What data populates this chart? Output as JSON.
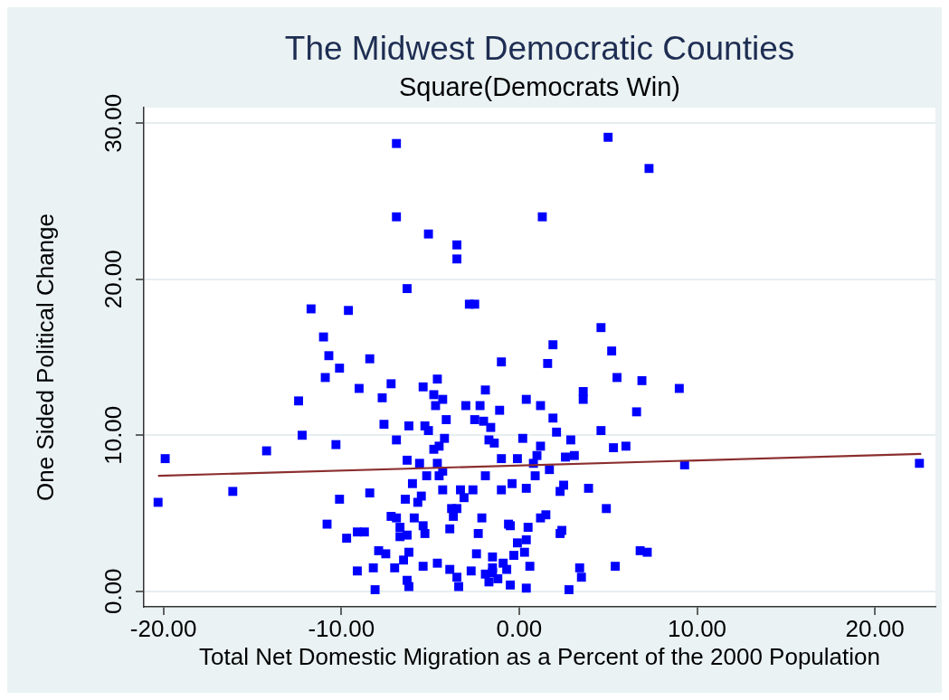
{
  "chart_data": {
    "type": "scatter",
    "title": "The Midwest Democratic Counties",
    "subtitle": "Square(Democrats Win)",
    "xlabel": "Total Net Domestic Migration as a Percent of the 2000 Population",
    "ylabel": "One Sided Political Change",
    "xlim": [
      -21.1,
      23.4
    ],
    "ylim": [
      -1,
      31
    ],
    "xticks": [
      {
        "value": -20,
        "label": "-20.00"
      },
      {
        "value": -10,
        "label": "-10.00"
      },
      {
        "value": 0,
        "label": "0.00"
      },
      {
        "value": 10,
        "label": "10.00"
      },
      {
        "value": 20,
        "label": "20.00"
      }
    ],
    "yticks": [
      {
        "value": 0,
        "label": "0.00"
      },
      {
        "value": 10,
        "label": "10.00"
      },
      {
        "value": 20,
        "label": "20.00"
      },
      {
        "value": 30,
        "label": "30.00"
      }
    ],
    "grid": "y",
    "marker": "square",
    "series": [
      {
        "color": "#0000ff",
        "x": [
          -11.7,
          -9.6,
          -11.0,
          -10.7,
          -8.4,
          -10.1,
          -10.9,
          -9.0,
          -7.2,
          -12.4,
          -7.7,
          -7.6,
          -12.2,
          -10.3,
          -14.2,
          -19.9,
          -16.1,
          -20.3,
          -8.4,
          -10.1,
          -7.2,
          -10.8,
          -9.7,
          -9.1,
          -8.7,
          -7.9,
          -7.5,
          -9.1,
          -8.2,
          -8.1,
          -6.9,
          5.0,
          -6.9,
          1.3,
          -5.1,
          -3.5,
          -3.5,
          -6.3,
          -2.8,
          -2.5,
          4.6,
          1.9,
          5.2,
          -1.0,
          1.6,
          5.5,
          6.9,
          -4.6,
          -5.4,
          -1.9,
          3.6,
          3.6,
          -4.8,
          -4.3,
          -4.7,
          0.4,
          -3.0,
          -2.2,
          1.2,
          -1.1,
          6.6,
          1.9,
          -4.1,
          -2.5,
          -2.0,
          -1.6,
          -6.2,
          -5.3,
          -5.1,
          2.1,
          4.6,
          -4.2,
          -6.9,
          0.2,
          -1.7,
          -1.4,
          1.2,
          2.9,
          5.3,
          6.0,
          -4.5,
          -4.8,
          -6.3,
          -5.6,
          -4.6,
          -1.0,
          -0.1,
          1.0,
          0.8,
          2.6,
          3.1,
          1.7,
          -5.2,
          -4.5,
          -4.3,
          -1.9,
          0.9,
          -6.0,
          -0.4,
          -4.3,
          -3.3,
          -3.1,
          -2.6,
          -1.0,
          0.4,
          2.5,
          2.3,
          3.9,
          -6.4,
          -5.5,
          -5.7,
          4.9,
          -3.8,
          -3.5,
          -3.7,
          -6.9,
          -5.9,
          -2.1,
          1.5,
          1.2,
          -6.7,
          -5.4,
          -5.3,
          -3.9,
          -0.6,
          -0.5,
          0.5,
          2.4,
          2.3,
          -6.7,
          -6.3,
          -2.3,
          0.4,
          -0.1,
          6.8,
          7.2,
          -6.2,
          -6.5,
          -7.0,
          -5.4,
          -4.6,
          -3.9,
          -3.5,
          -2.7,
          -2.4,
          -1.5,
          -0.9,
          -0.7,
          -0.3,
          0.3,
          0.6,
          -1.5,
          -1.9,
          -1.5,
          -1.2,
          -1.7,
          -6.3,
          -6.2,
          -3.4,
          -0.5,
          0.4,
          2.8,
          3.4,
          3.5,
          5.4,
          7.3,
          9.0,
          9.3,
          22.5
        ],
        "values": [
          18.1,
          18.0,
          16.3,
          15.1,
          14.9,
          14.3,
          13.7,
          13.0,
          13.3,
          12.2,
          12.4,
          10.7,
          10.0,
          9.4,
          9.0,
          8.5,
          6.4,
          5.7,
          6.3,
          5.9,
          4.8,
          4.3,
          3.4,
          3.8,
          3.8,
          2.6,
          2.4,
          1.3,
          1.5,
          0.1,
          28.7,
          29.1,
          24.0,
          24.0,
          22.9,
          22.2,
          21.3,
          19.4,
          18.4,
          18.4,
          16.9,
          15.8,
          15.4,
          14.7,
          14.6,
          13.7,
          13.5,
          13.6,
          13.1,
          12.9,
          12.8,
          12.3,
          12.6,
          12.3,
          11.9,
          12.3,
          11.9,
          11.9,
          11.9,
          11.6,
          11.5,
          11.1,
          11.0,
          11.0,
          10.9,
          10.5,
          10.6,
          10.6,
          10.3,
          10.2,
          10.3,
          9.8,
          9.7,
          9.8,
          9.7,
          9.5,
          9.3,
          9.7,
          9.2,
          9.3,
          9.3,
          9.1,
          8.4,
          8.2,
          8.2,
          8.5,
          8.5,
          8.7,
          8.2,
          8.6,
          8.7,
          7.8,
          7.4,
          7.4,
          7.7,
          7.4,
          7.4,
          6.9,
          6.9,
          6.5,
          6.5,
          6.0,
          6.5,
          6.5,
          6.6,
          6.8,
          6.4,
          6.6,
          5.9,
          6.1,
          5.7,
          5.3,
          5.3,
          5.3,
          4.8,
          4.7,
          4.7,
          4.7,
          4.9,
          4.7,
          4.1,
          4.2,
          3.7,
          4.0,
          4.3,
          4.2,
          4.1,
          3.9,
          3.7,
          3.5,
          3.6,
          3.7,
          3.3,
          3.1,
          2.6,
          2.5,
          2.5,
          2.0,
          1.5,
          1.6,
          1.8,
          1.4,
          0.9,
          1.3,
          2.4,
          2.2,
          1.8,
          1.4,
          2.3,
          2.5,
          1.6,
          1.5,
          1.1,
          1.2,
          0.8,
          0.6,
          0.7,
          0.3,
          0.3,
          0.4,
          0.2,
          0.1,
          1.5,
          0.9,
          1.6,
          27.1,
          13.0,
          8.1,
          8.2
        ]
      },
      {
        "type": "line",
        "color": "#8b2e2e",
        "marker": "none",
        "x": [
          -20.3,
          22.6
        ],
        "values": [
          7.4,
          8.8
        ]
      }
    ]
  }
}
